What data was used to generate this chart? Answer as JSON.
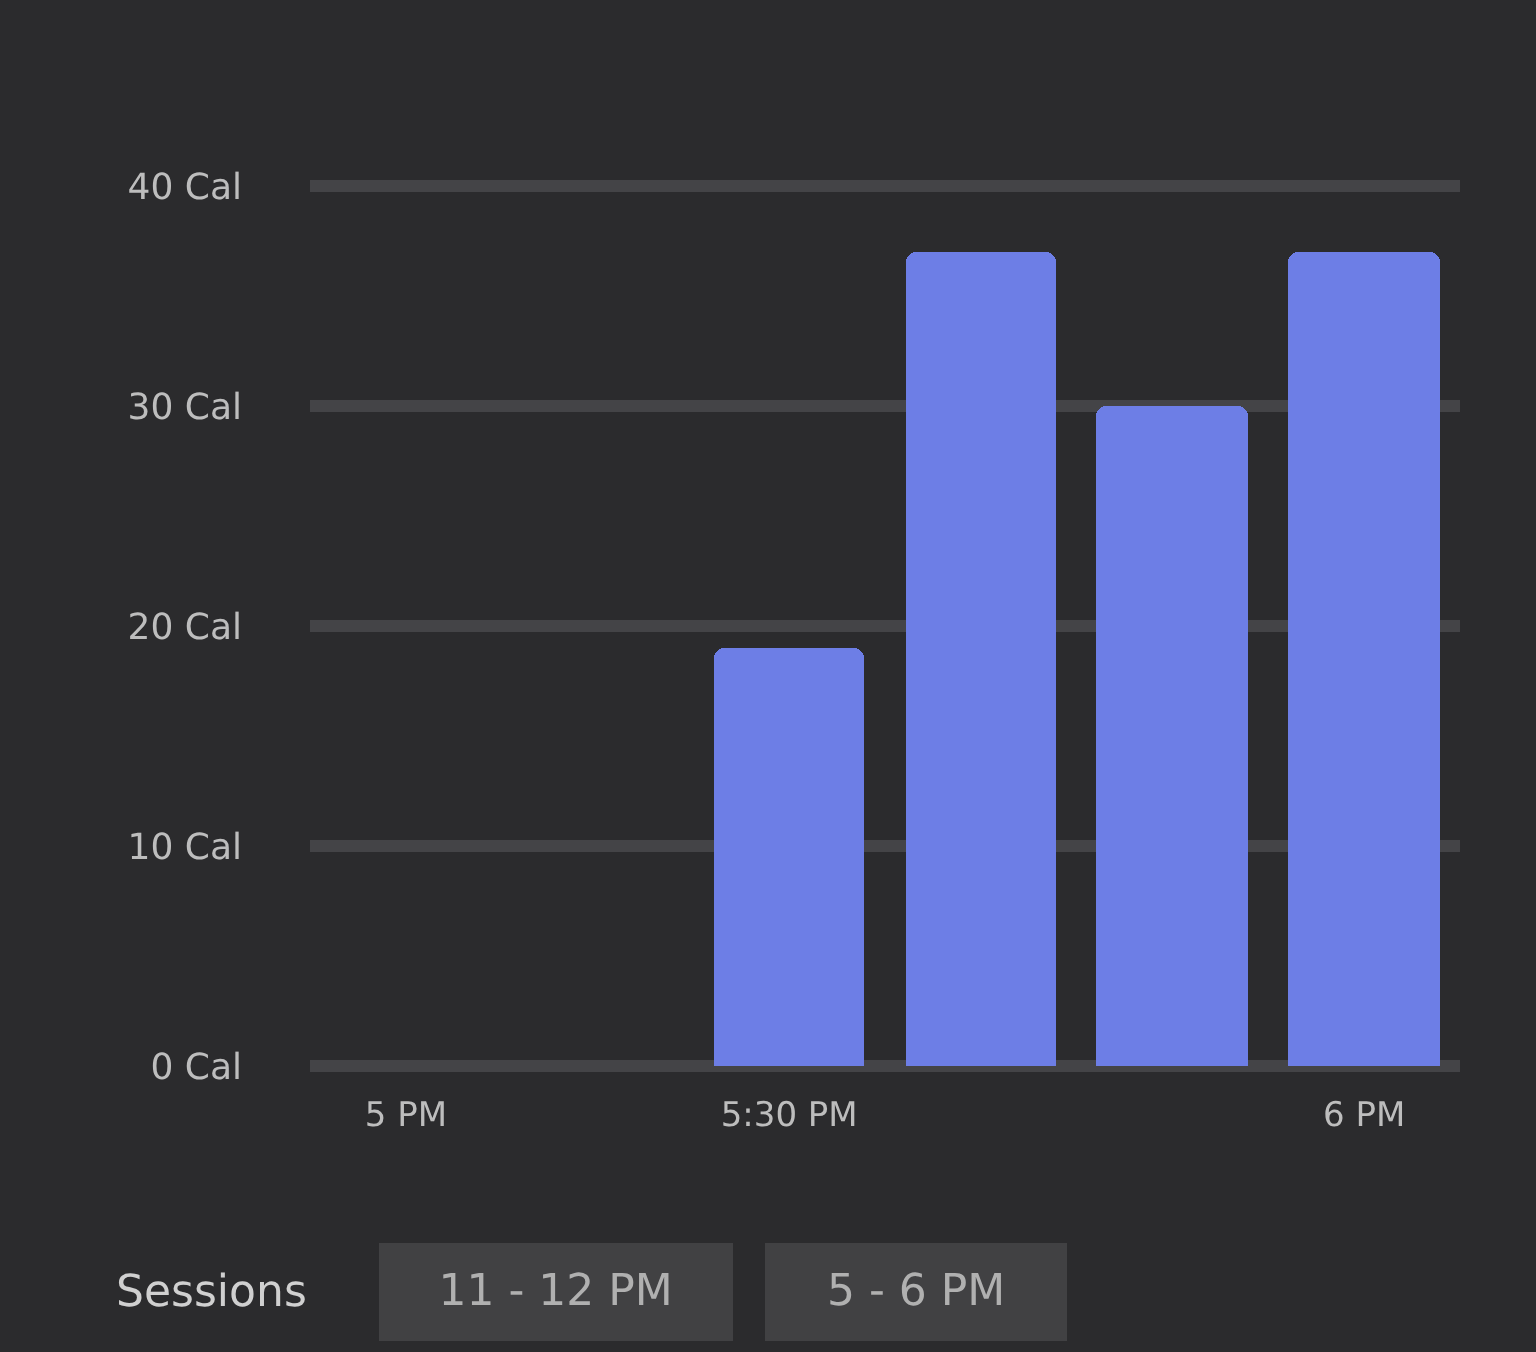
{
  "chart_data": {
    "type": "bar",
    "categories": [
      "5 PM",
      null,
      "5:30 PM",
      null,
      null,
      "6 PM"
    ],
    "values": [
      null,
      null,
      19,
      37,
      30,
      37
    ],
    "color": "#6d7ee6",
    "ylim": [
      0,
      40
    ],
    "yticks": [
      {
        "value": 0,
        "label": "0 Cal"
      },
      {
        "value": 10,
        "label": "10 Cal"
      },
      {
        "value": 20,
        "label": "20 Cal"
      },
      {
        "value": 30,
        "label": "30 Cal"
      },
      {
        "value": 40,
        "label": "40 Cal"
      }
    ],
    "grid": "y",
    "annotations": [
      "Sessions",
      "11 - 12 PM",
      "5 - 6 PM"
    ]
  }
}
